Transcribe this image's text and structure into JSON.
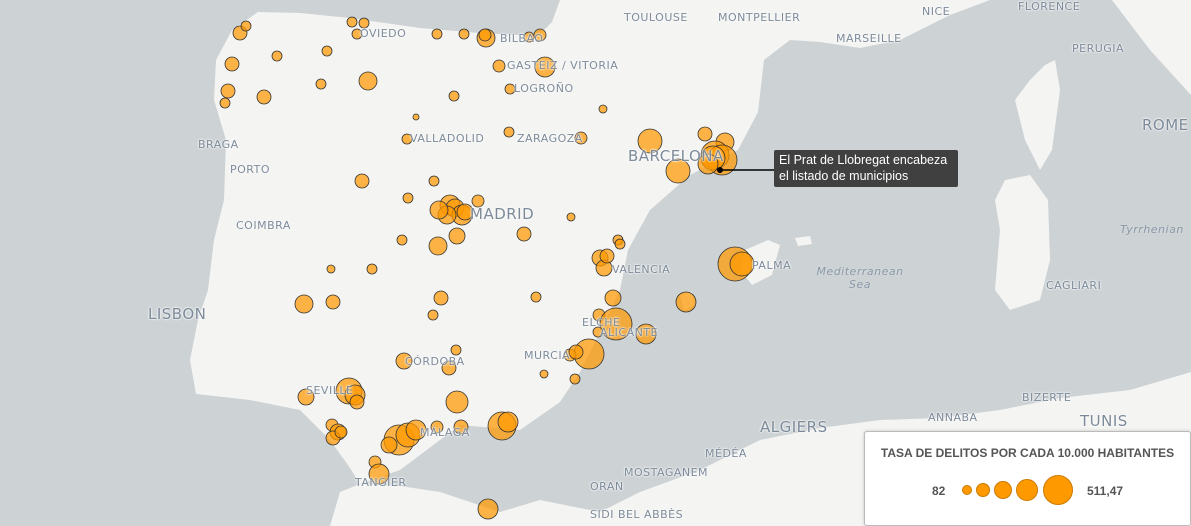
{
  "map": {
    "colors": {
      "land": "#f4f4f3",
      "sea": "#cdd2d4",
      "bubble": "#ff9900",
      "bubble_stroke": "#333333"
    },
    "labels": [
      {
        "id": "oviedo",
        "text": "OVIEDO"
      },
      {
        "id": "bilbao",
        "text": "BILBAO"
      },
      {
        "id": "gasteiz",
        "text": "GASTEIZ / VITORIA"
      },
      {
        "id": "logrono",
        "text": "LOGROÑO"
      },
      {
        "id": "valladolid",
        "text": "VALLADOLID"
      },
      {
        "id": "zaragoza",
        "text": "ZARAGOZA"
      },
      {
        "id": "barcelona",
        "text": "BARCELONA"
      },
      {
        "id": "madrid",
        "text": "MADRID"
      },
      {
        "id": "valencia",
        "text": "VALENCIA"
      },
      {
        "id": "palma",
        "text": "PALMA"
      },
      {
        "id": "alicante",
        "text": "ALICANTE"
      },
      {
        "id": "elche",
        "text": "ELCHE"
      },
      {
        "id": "murcia",
        "text": "MURCIA"
      },
      {
        "id": "cordoba",
        "text": "CÓRDOBA"
      },
      {
        "id": "sevilla",
        "text": "SEVILLE"
      },
      {
        "id": "malaga",
        "text": "MÁLAGA"
      },
      {
        "id": "tangier",
        "text": "TANGIER"
      },
      {
        "id": "braga",
        "text": "BRAGA"
      },
      {
        "id": "porto",
        "text": "PORTO"
      },
      {
        "id": "coimbra",
        "text": "COIMBRA"
      },
      {
        "id": "lisbon",
        "text": "LISBON"
      },
      {
        "id": "toulouse",
        "text": "TOULOUSE"
      },
      {
        "id": "montpellier",
        "text": "MONTPELLIER"
      },
      {
        "id": "nice",
        "text": "NICE"
      },
      {
        "id": "marseille",
        "text": "MARSEILLE"
      },
      {
        "id": "florence",
        "text": "FLORENCE"
      },
      {
        "id": "perugia",
        "text": "PERUGIA"
      },
      {
        "id": "rome",
        "text": "ROME"
      },
      {
        "id": "tyrrhenian",
        "text": "Tyrrhenian"
      },
      {
        "id": "cagliari",
        "text": "CAGLIARI"
      },
      {
        "id": "med",
        "text": "Mediterranean Sea"
      },
      {
        "id": "algiers",
        "text": "ALGIERS"
      },
      {
        "id": "medea",
        "text": "MÉDÉA"
      },
      {
        "id": "mostaganem",
        "text": "MOSTAGANEM"
      },
      {
        "id": "oran",
        "text": "ORAN"
      },
      {
        "id": "sidi",
        "text": "SIDI BEL ABBÈS"
      },
      {
        "id": "annaba",
        "text": "ANNABA"
      },
      {
        "id": "bizerte",
        "text": "BIZERTE"
      },
      {
        "id": "tunis",
        "text": "TUNIS"
      }
    ],
    "tooltip": "El Prat de Llobregat encabeza el listado de municipios"
  },
  "legend": {
    "title": "TASA DE DELITOS POR CADA 10.000 HABITANTES",
    "min": "82",
    "max": "511,47"
  }
}
